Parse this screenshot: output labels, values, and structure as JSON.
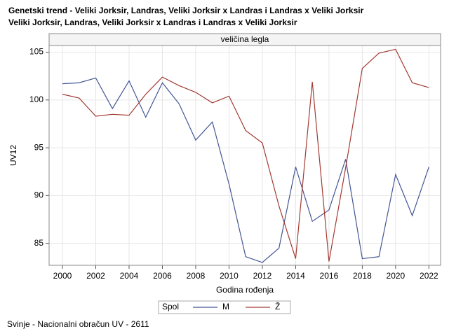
{
  "chart_data": {
    "type": "line",
    "title": "Genetski trend - Veliki Jorksir, Landras, Veliki Jorksir x Landras i Landras x Veliki Jorksir",
    "subtitle": "Veliki Jorksir, Landras, Veliki Jorksir x Landras i Landras x Veliki Jorksir",
    "panel_label": "veličina legla",
    "x_label": "Godina rođenja",
    "y_label": "UV12",
    "legend_title": "Spol",
    "footnote": "Svinje - Nacionalni obračun UV - 2611",
    "x": [
      2000,
      2001,
      2002,
      2003,
      2004,
      2005,
      2006,
      2007,
      2008,
      2009,
      2010,
      2011,
      2012,
      2013,
      2014,
      2015,
      2016,
      2017,
      2018,
      2019,
      2020,
      2021,
      2022
    ],
    "series": [
      {
        "name": "M",
        "color": "#445694",
        "values": [
          101.7,
          101.8,
          102.3,
          99.1,
          102.0,
          98.2,
          101.8,
          99.6,
          95.8,
          97.7,
          91.2,
          83.6,
          83.0,
          84.5,
          93.0,
          87.3,
          88.5,
          93.8,
          83.4,
          83.6,
          92.2,
          87.9,
          93.0
        ]
      },
      {
        "name": "Ž",
        "color": "#a23a32",
        "values": [
          100.6,
          100.2,
          98.3,
          98.5,
          98.4,
          100.6,
          102.4,
          101.5,
          100.8,
          99.7,
          100.4,
          96.8,
          95.5,
          88.9,
          83.4,
          101.9,
          83.1,
          92.9,
          103.3,
          104.9,
          105.3,
          101.8,
          101.3
        ]
      }
    ],
    "xlim": [
      1999.2,
      2022.7
    ],
    "xticks": [
      2000,
      2002,
      2004,
      2006,
      2008,
      2010,
      2012,
      2014,
      2016,
      2018,
      2020,
      2022
    ],
    "ylim": [
      82.7,
      105.7
    ],
    "yticks": [
      85,
      90,
      95,
      100,
      105
    ],
    "grid": true
  }
}
